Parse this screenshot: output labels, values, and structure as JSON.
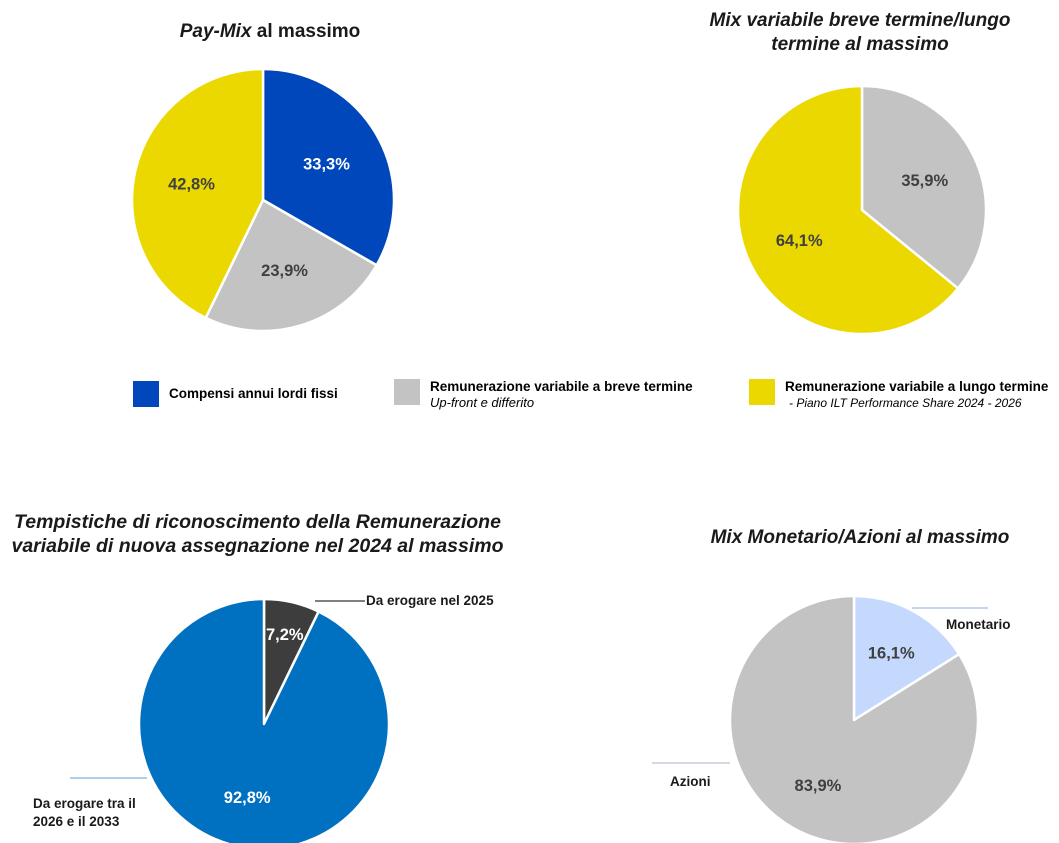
{
  "chart_data": [
    {
      "type": "pie",
      "title_italic": "Pay-Mix",
      "title_rest": " al massimo",
      "start_angle_deg": 0,
      "slices": [
        {
          "label": "Compensi annui lordi fissi",
          "value": 33.3,
          "display": "33,3%",
          "color": "#0047BB",
          "label_color": "#ffffff"
        },
        {
          "label": "Remunerazione variabile a breve termine",
          "value": 23.9,
          "display": "23,9%",
          "color": "#C3C3C3",
          "label_color": "#404040"
        },
        {
          "label": "Remunerazione variabile a lungo termine",
          "value": 42.8,
          "display": "42,8%",
          "color": "#EBD800",
          "label_color": "#404040"
        }
      ]
    },
    {
      "type": "pie",
      "title_line1": "Mix variabile breve termine/lungo",
      "title_line2": "termine al massimo",
      "start_angle_deg": 0,
      "slices": [
        {
          "label": "Remunerazione variabile a breve termine",
          "value": 35.9,
          "display": "35,9%",
          "color": "#C3C3C3",
          "label_color": "#404040"
        },
        {
          "label": "Remunerazione variabile a lungo termine",
          "value": 64.1,
          "display": "64,1%",
          "color": "#EBD800",
          "label_color": "#404040"
        }
      ]
    },
    {
      "type": "pie",
      "title_line1": "Tempistiche di riconoscimento della Remunerazione",
      "title_line2": "variabile di nuova assegnazione nel 2024 al massimo",
      "start_angle_deg": 0,
      "slices": [
        {
          "label": "Da erogare nel 2025",
          "value": 7.2,
          "display": "7,2%",
          "color": "#3D3D3D",
          "label_color": "#ffffff"
        },
        {
          "label": "Da erogare tra il 2026 e il 2033",
          "value": 92.8,
          "display": "92,8%",
          "color": "#0070C0",
          "label_color": "#ffffff"
        }
      ]
    },
    {
      "type": "pie",
      "title": "Mix Monetario/Azioni al massimo",
      "start_angle_deg": 0,
      "slices": [
        {
          "label": "Monetario",
          "value": 16.1,
          "display": "16,1%",
          "color": "#C5D9FF",
          "label_color": "#404040"
        },
        {
          "label": "Azioni",
          "value": 83.9,
          "display": "83,9%",
          "color": "#C3C3C3",
          "label_color": "#404040"
        }
      ]
    }
  ],
  "legend": {
    "items": [
      {
        "name": "Compensi annui lordi fissi",
        "sub": "",
        "color": "#0047BB"
      },
      {
        "name": "Remunerazione variabile a breve termine",
        "sub": "Up-front e differito",
        "color": "#C3C3C3"
      },
      {
        "name": "Remunerazione variabile a lungo termine",
        "sub": "- Piano ILT Performance Share 2024 - 2026",
        "color": "#EBD800"
      }
    ]
  },
  "annotations": {
    "c3_small_label": "Da erogare nel 2025",
    "c3_large_line1": "Da erogare tra il",
    "c3_large_line2": "2026 e il 2033",
    "c4_small_label": "Monetario",
    "c4_large_label": "Azioni"
  }
}
